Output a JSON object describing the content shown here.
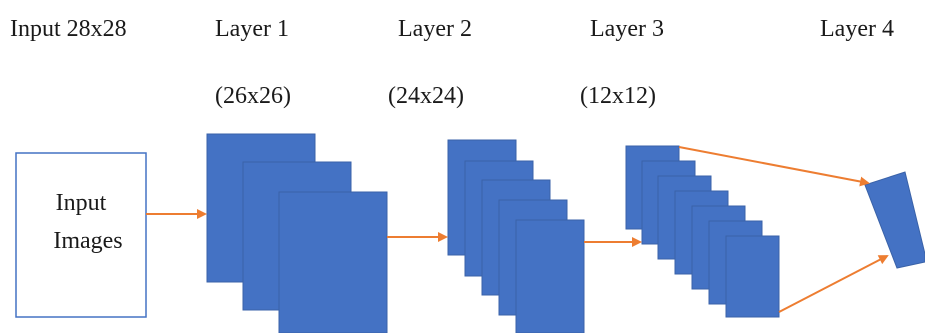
{
  "layers": [
    {
      "title": "Input 28x28",
      "size": ""
    },
    {
      "title": "Layer 1",
      "size": "(26x26)"
    },
    {
      "title": "Layer 2",
      "size": "(24x24)"
    },
    {
      "title": "Layer 3",
      "size": "(12x12)"
    },
    {
      "title": "Layer 4",
      "size": ""
    }
  ],
  "input_box": {
    "line1": "Input",
    "line2": "Images"
  },
  "feature_map_counts": [
    3,
    5,
    7,
    1
  ],
  "colors": {
    "feature_map": "#4472c4",
    "arrow": "#ed7d31",
    "input_border": "#4472c4"
  }
}
